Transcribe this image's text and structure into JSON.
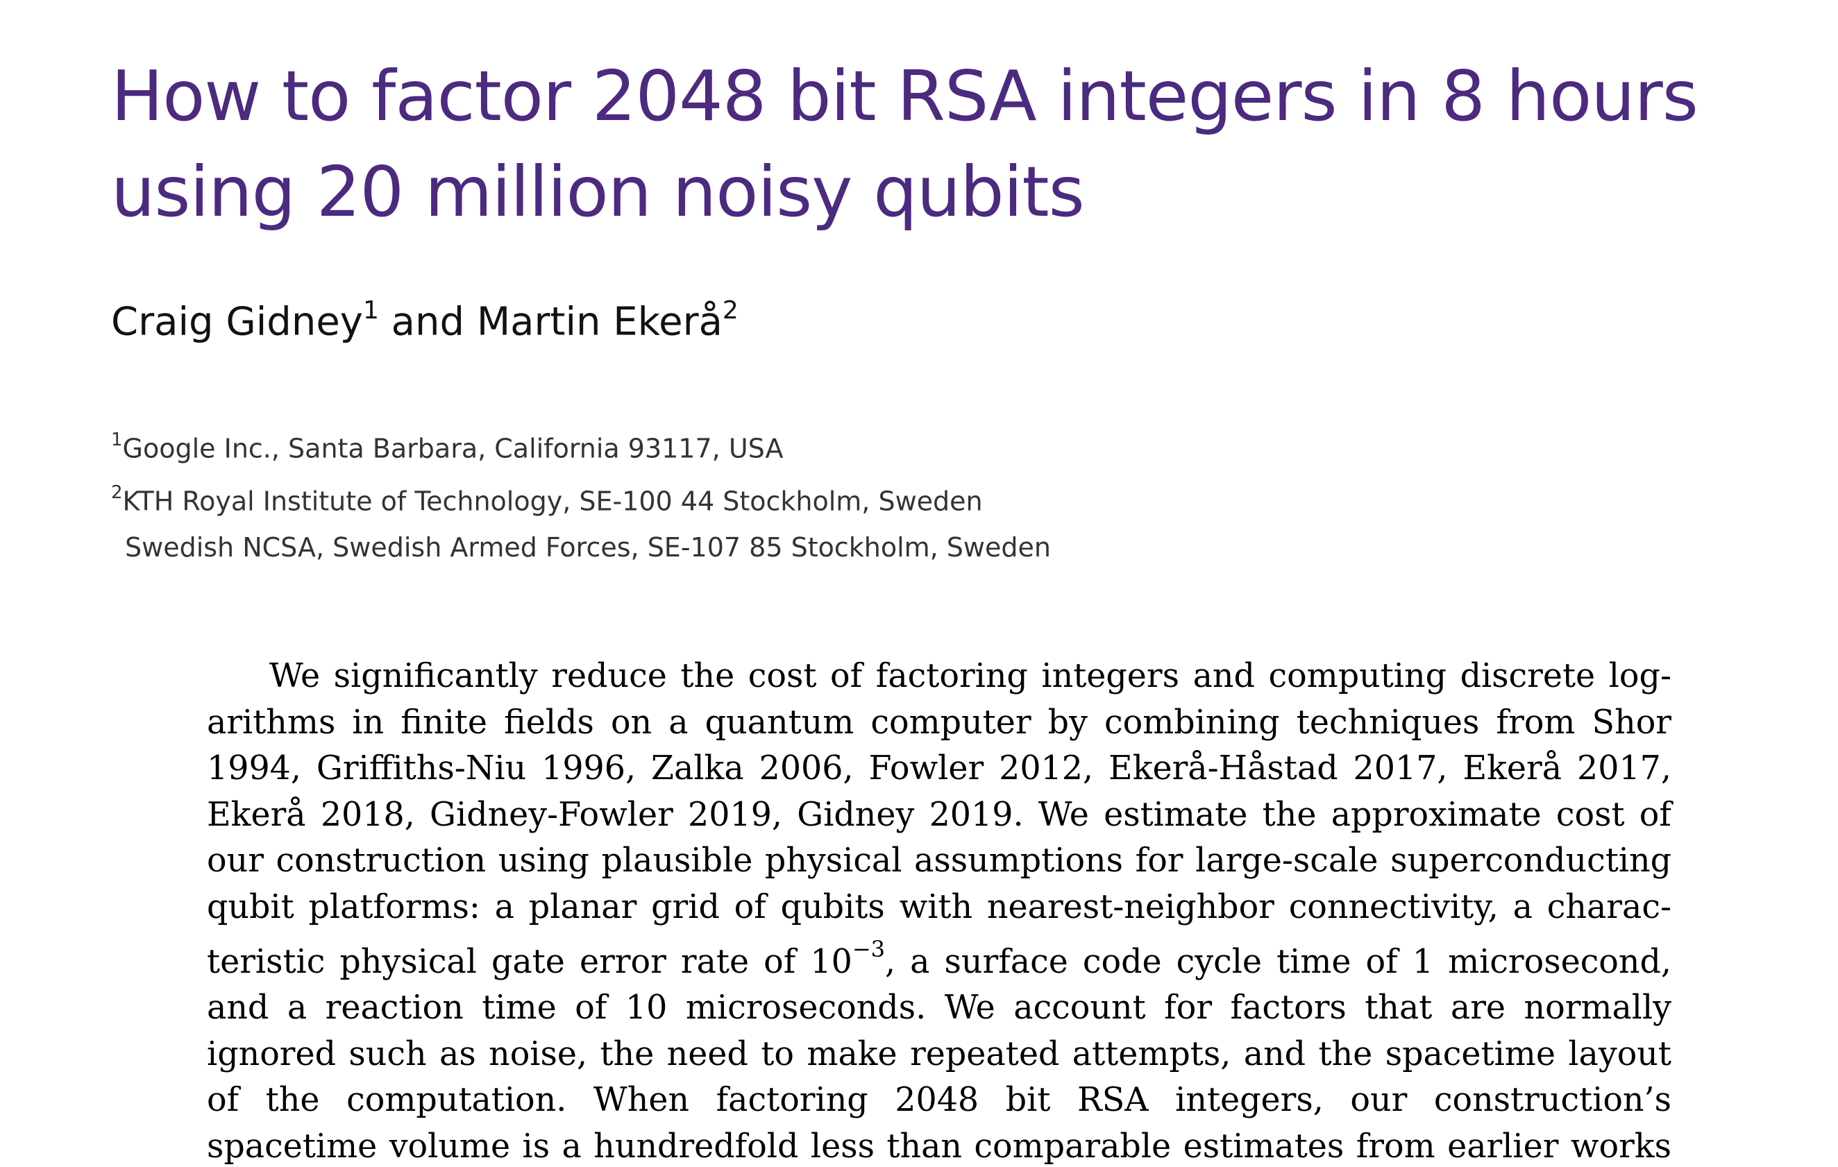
{
  "paper": {
    "title": "How to factor 2048 bit RSA integers in 8 hours using 20 million noisy qubits",
    "authors": {
      "author1": "Craig Gidney",
      "author1_mark": "1",
      "connector": "and",
      "author2": "Martin Ekerå",
      "author2_mark": "2"
    },
    "affiliations": [
      {
        "mark": "1",
        "text": "Google Inc., Santa Barbara, California 93117, USA"
      },
      {
        "mark": "2",
        "text": "KTH Royal Institute of Technology, SE-100 44 Stockholm, Sweden"
      },
      {
        "mark": "",
        "text": "Swedish NCSA, Swedish Armed Forces, SE-107 85 Stockholm, Sweden"
      }
    ],
    "abstract": {
      "part1": "We significantly reduce the cost of factoring integers and computing discrete log­arithms in finite fields on a quantum computer by combining techniques from Shor 1994, Griffiths-Niu 1996, Zalka 2006, Fowler 2012, Ekerå-Håstad 2017, Ekerå 2017, Ekerå 2018, Gidney-Fowler 2019, Gidney 2019. We estimate the approximate cost of our construction using plausible physical assumptions for large-scale superconducting qubit platforms: a planar grid of qubits with nearest-neighbor connectivity, a charac­teristic physical gate error rate of 10",
      "exponent": "−3",
      "part2": ", a surface code cycle time of 1 microsecond, and a reaction time of 10 microseconds. We account for factors that are normally ignored such as noise, the need to make repeated attempts, and the spacetime layout of the computation. When factoring 2048 bit RSA integers, our construction’s spacetime vol­ume is a hundredfold less than comparable estimates from earlier works (Van Meter et"
    }
  }
}
